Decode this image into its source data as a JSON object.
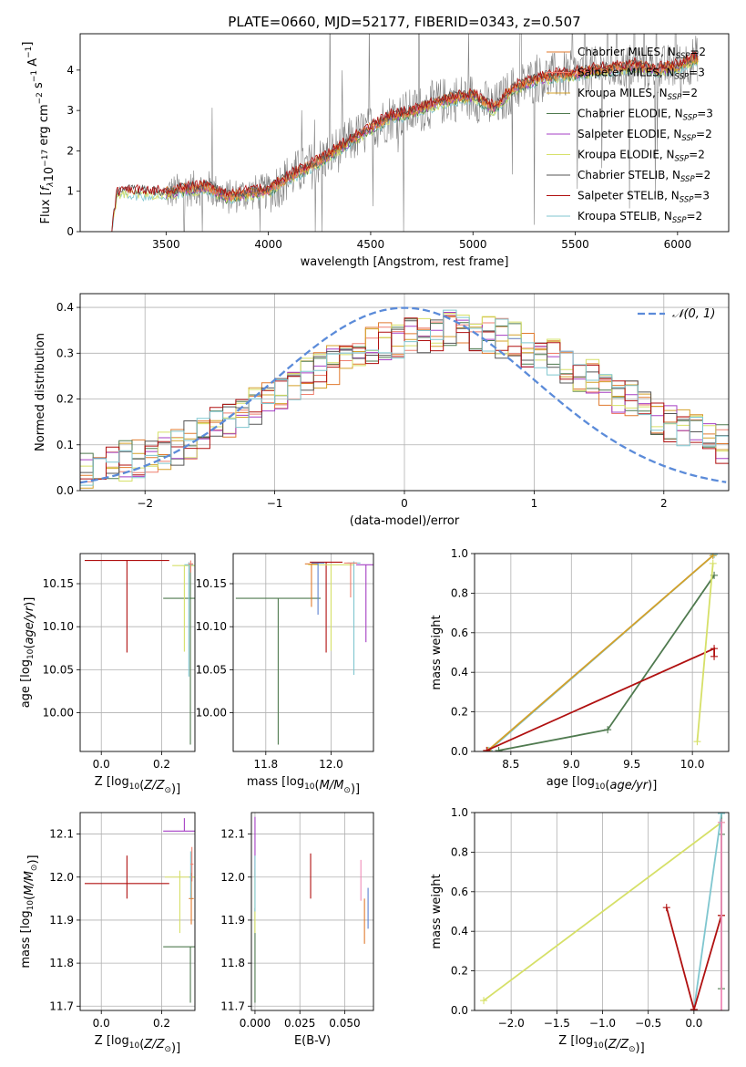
{
  "figure_title": "PLATE=0660, MJD=52177, FIBERID=0343, z=0.507",
  "colors": {
    "chabrier_miles": "#e07a2e",
    "salpeter_miles": "#ef7f6e",
    "kroupa_miles": "#d4a02a",
    "chabrier_elodie": "#4f7a4f",
    "salpeter_elodie": "#a53fc4",
    "kroupa_elodie": "#d6e068",
    "chabrier_stelib": "#555555",
    "salpeter_stelib": "#b01010",
    "kroupa_stelib": "#7fc6cf",
    "data": "#808080",
    "normal": "#5b8bd9",
    "pink": "#f08bb8",
    "blue_small": "#5c7fd0"
  },
  "chart_data": [
    {
      "id": "spectrum",
      "type": "line",
      "title": "PLATE=0660, MJD=52177, FIBERID=0343, z=0.507",
      "xlabel": "wavelength [Angstrom, rest frame]",
      "ylabel_parts": [
        "Flux [",
        "f",
        "λ",
        "10",
        "−17",
        " erg cm",
        "−2",
        " s",
        "−1",
        " A",
        "−1",
        "]"
      ],
      "xlim": [
        3080,
        6250
      ],
      "ylim": [
        0,
        4.9
      ],
      "xticks": [
        3500,
        4000,
        4500,
        5000,
        5500,
        6000
      ],
      "yticks": [
        0,
        1,
        2,
        3,
        4
      ],
      "legend_position": "upper-right",
      "legend": [
        {
          "label": "Chabrier MILES, N",
          "sub": "SSP",
          "suffix": "=2",
          "color_key": "chabrier_miles"
        },
        {
          "label": "Salpeter MILES, N",
          "sub": "SSP",
          "suffix": "=3",
          "color_key": "salpeter_miles"
        },
        {
          "label": "Kroupa MILES, N",
          "sub": "SSP",
          "suffix": "=2",
          "color_key": "kroupa_miles"
        },
        {
          "label": "Chabrier ELODIE, N",
          "sub": "SSP",
          "suffix": "=3",
          "color_key": "chabrier_elodie"
        },
        {
          "label": "Salpeter ELODIE, N",
          "sub": "SSP",
          "suffix": "=2",
          "color_key": "salpeter_elodie"
        },
        {
          "label": "Kroupa ELODIE, N",
          "sub": "SSP",
          "suffix": "=2",
          "color_key": "kroupa_elodie"
        },
        {
          "label": "Chabrier STELIB, N",
          "sub": "SSP",
          "suffix": "=2",
          "color_key": "chabrier_stelib"
        },
        {
          "label": "Salpeter STELIB, N",
          "sub": "SSP",
          "suffix": "=3",
          "color_key": "salpeter_stelib"
        },
        {
          "label": "Kroupa STELIB, N",
          "sub": "SSP",
          "suffix": "=2",
          "color_key": "kroupa_stelib"
        }
      ],
      "model_curve": {
        "x": [
          3230,
          3260,
          3300,
          3400,
          3500,
          3600,
          3700,
          3800,
          3900,
          4000,
          4100,
          4200,
          4300,
          4400,
          4500,
          4600,
          4700,
          4800,
          4900,
          5000,
          5100,
          5200,
          5300,
          5400,
          5500,
          5600,
          5700,
          5800,
          5900,
          6000,
          6100
        ],
        "y": [
          0.0,
          0.9,
          1.0,
          0.95,
          0.95,
          1.05,
          1.1,
          0.85,
          0.95,
          1.0,
          1.35,
          1.6,
          1.9,
          2.25,
          2.55,
          2.85,
          2.95,
          3.15,
          3.3,
          3.35,
          3.05,
          3.55,
          3.75,
          3.85,
          3.9,
          4.0,
          4.05,
          4.1,
          4.0,
          4.1,
          4.3
        ]
      },
      "data_range": [
        3500,
        6100
      ]
    },
    {
      "id": "residuals",
      "type": "step",
      "xlabel": "(data-model)/error",
      "ylabel": "Normed distribution",
      "xlim": [
        -2.5,
        2.5
      ],
      "ylim": [
        0,
        0.43
      ],
      "xticks": [
        -2,
        -1,
        0,
        1,
        2
      ],
      "yticks": [
        0.0,
        0.1,
        0.2,
        0.3,
        0.4
      ],
      "legend": [
        {
          "label": "𝒩(0, 1)",
          "color_key": "normal"
        }
      ],
      "legend_position": "upper-right",
      "normal_curve": {
        "mean": 0,
        "sigma": 1
      }
    },
    {
      "id": "age_vs_Z",
      "type": "errorbar",
      "xlabel": "Z [log₁₀(Z/Z☉)]",
      "ylabel": "age  [log₁₀(age/yr)]",
      "xlim": [
        -0.07,
        0.31
      ],
      "ylim": [
        9.955,
        10.185
      ],
      "xticks": [
        0.0,
        0.2
      ],
      "yticks": [
        10.0,
        10.05,
        10.1,
        10.15
      ],
      "points": [
        {
          "x": 0.085,
          "xerr": 0.14,
          "y": 10.177,
          "yerr_lo": 0.107,
          "yerr_hi": 0.0,
          "color_key": "salpeter_stelib"
        },
        {
          "x": 0.295,
          "xerr": 0.09,
          "y": 10.133,
          "yerr_lo": 0.17,
          "yerr_hi": 0.04,
          "color_key": "chabrier_elodie"
        },
        {
          "x": 0.275,
          "xerr": 0.04,
          "y": 10.171,
          "yerr_lo": 0.1,
          "yerr_hi": 0.0,
          "color_key": "kroupa_elodie"
        },
        {
          "x": 0.29,
          "xerr": 0.015,
          "y": 10.172,
          "yerr_lo": 0.13,
          "yerr_hi": 0.003,
          "color_key": "kroupa_stelib"
        },
        {
          "x": 0.296,
          "xerr": 0.008,
          "y": 10.173,
          "yerr_lo": 0.01,
          "yerr_hi": 0.004,
          "color_key": "salpeter_miles"
        }
      ]
    },
    {
      "id": "age_vs_mass",
      "type": "errorbar",
      "xlabel": "mass [log₁₀(M/M☉)]",
      "ylabel": "",
      "xlim": [
        11.7,
        12.13
      ],
      "ylim": [
        9.955,
        10.185
      ],
      "xticks": [
        11.8,
        12.0
      ],
      "yticks": [
        10.0,
        10.05,
        10.1,
        10.15
      ],
      "points": [
        {
          "x": 11.838,
          "xerr": 0.13,
          "y": 10.133,
          "yerr_lo": 0.17,
          "yerr_hi": 0.0,
          "color_key": "chabrier_elodie"
        },
        {
          "x": 11.985,
          "xerr": 0.05,
          "y": 10.175,
          "yerr_lo": 0.105,
          "yerr_hi": 0.0,
          "color_key": "salpeter_stelib"
        },
        {
          "x": 12.107,
          "xerr": 0.03,
          "y": 10.172,
          "yerr_lo": 0.09,
          "yerr_hi": 0.0,
          "color_key": "salpeter_elodie"
        },
        {
          "x": 12.0,
          "xerr": 0.07,
          "y": 10.172,
          "yerr_lo": 0.1,
          "yerr_hi": 0.0,
          "color_key": "kroupa_elodie"
        },
        {
          "x": 11.94,
          "xerr": 0.02,
          "y": 10.173,
          "yerr_lo": 0.05,
          "yerr_hi": 0.0,
          "color_key": "chabrier_miles"
        },
        {
          "x": 12.07,
          "xerr": 0.02,
          "y": 10.174,
          "yerr_lo": 0.13,
          "yerr_hi": 0.002,
          "color_key": "kroupa_stelib"
        },
        {
          "x": 12.06,
          "xerr": 0.02,
          "y": 10.174,
          "yerr_lo": 0.04,
          "yerr_hi": 0.0,
          "color_key": "salpeter_miles"
        },
        {
          "x": 11.96,
          "xerr": 0.02,
          "y": 10.174,
          "yerr_lo": 0.06,
          "yerr_hi": 0.0,
          "color_key": "blue_small"
        }
      ]
    },
    {
      "id": "weight_vs_age",
      "type": "line",
      "xlabel": "age  [log₁₀(age/yr)]",
      "ylabel": "mass weight",
      "xlim": [
        8.2,
        10.3
      ],
      "ylim": [
        0,
        1
      ],
      "xticks": [
        8.5,
        9.0,
        9.5,
        10.0
      ],
      "yticks": [
        0.0,
        0.2,
        0.4,
        0.6,
        0.8,
        1.0
      ],
      "series": [
        {
          "color_key": "kroupa_stelib",
          "x": [
            8.32,
            10.18
          ],
          "y": [
            0.005,
            0.995
          ]
        },
        {
          "color_key": "kroupa_miles",
          "x": [
            8.31,
            10.17
          ],
          "y": [
            0.005,
            0.99
          ]
        },
        {
          "color_key": "chabrier_elodie",
          "x": [
            8.4,
            9.3,
            10.18
          ],
          "y": [
            0.005,
            0.11,
            0.89
          ]
        },
        {
          "color_key": "salpeter_stelib",
          "x": [
            8.3,
            10.18,
            10.18
          ],
          "y": [
            0.005,
            0.52,
            0.48
          ]
        },
        {
          "color_key": "kroupa_elodie",
          "x": [
            10.04,
            10.17
          ],
          "y": [
            0.05,
            0.95
          ]
        }
      ]
    },
    {
      "id": "mass_vs_Z",
      "type": "errorbar",
      "xlabel": "Z [log₁₀(Z/Z☉)]",
      "ylabel": "mass [log₁₀(M/M☉)]",
      "xlim": [
        -0.07,
        0.31
      ],
      "ylim": [
        11.69,
        12.15
      ],
      "xticks": [
        0.0,
        0.2
      ],
      "yticks": [
        11.7,
        11.8,
        11.9,
        12.0,
        12.1
      ],
      "points": [
        {
          "x": 0.085,
          "xerr": 0.14,
          "y": 11.985,
          "yerr_lo": 0.035,
          "yerr_hi": 0.065,
          "color_key": "salpeter_stelib"
        },
        {
          "x": 0.295,
          "xerr": 0.09,
          "y": 11.838,
          "yerr_lo": 0.13,
          "yerr_hi": 0.0,
          "color_key": "chabrier_elodie"
        },
        {
          "x": 0.275,
          "xerr": 0.07,
          "y": 12.107,
          "yerr_lo": 0.0,
          "yerr_hi": 0.03,
          "color_key": "salpeter_elodie"
        },
        {
          "x": 0.26,
          "xerr": 0.05,
          "y": 12.0,
          "yerr_lo": 0.13,
          "yerr_hi": 0.015,
          "color_key": "kroupa_elodie"
        },
        {
          "x": 0.298,
          "xerr": 0.008,
          "y": 11.95,
          "yerr_lo": 0.06,
          "yerr_hi": 0.06,
          "color_key": "chabrier_miles"
        },
        {
          "x": 0.296,
          "xerr": 0.005,
          "y": 12.0,
          "yerr_lo": 0.05,
          "yerr_hi": 0.06,
          "color_key": "kroupa_stelib"
        },
        {
          "x": 0.3,
          "xerr": 0.005,
          "y": 12.03,
          "yerr_lo": 0.04,
          "yerr_hi": 0.04,
          "color_key": "salpeter_miles"
        }
      ]
    },
    {
      "id": "mass_vs_ebv",
      "type": "errorbar",
      "xlabel": "E(B-V)",
      "ylabel": "",
      "xlim": [
        -0.002,
        0.066
      ],
      "ylim": [
        11.69,
        12.15
      ],
      "xticks": [
        0.0,
        0.025,
        0.05
      ],
      "yticks": [
        11.7,
        11.8,
        11.9,
        12.0,
        12.1
      ],
      "points": [
        {
          "x": 0.0,
          "y": 11.838,
          "yerr_lo": 0.13,
          "yerr_hi": 0.09,
          "color_key": "chabrier_elodie"
        },
        {
          "x": 0.0,
          "y": 12.05,
          "yerr_lo": 0.05,
          "yerr_hi": 0.09,
          "color_key": "salpeter_elodie"
        },
        {
          "x": 0.0,
          "y": 11.9,
          "yerr_lo": 0.03,
          "yerr_hi": 0.12,
          "color_key": "kroupa_elodie"
        },
        {
          "x": 0.0,
          "y": 12.0,
          "yerr_lo": 0.08,
          "yerr_hi": 0.05,
          "color_key": "kroupa_stelib"
        },
        {
          "x": 0.031,
          "y": 12.0,
          "yerr_lo": 0.05,
          "yerr_hi": 0.055,
          "color_key": "salpeter_stelib"
        },
        {
          "x": 0.059,
          "y": 11.99,
          "yerr_lo": 0.045,
          "yerr_hi": 0.05,
          "color_key": "pink"
        },
        {
          "x": 0.061,
          "y": 11.9,
          "yerr_lo": 0.055,
          "yerr_hi": 0.05,
          "color_key": "chabrier_miles"
        },
        {
          "x": 0.063,
          "y": 11.93,
          "yerr_lo": 0.05,
          "yerr_hi": 0.045,
          "color_key": "blue_small"
        }
      ]
    },
    {
      "id": "weight_vs_Z",
      "type": "line",
      "xlabel": "Z [log₁₀(Z/Z☉)]",
      "ylabel": "mass weight",
      "xlim": [
        -2.4,
        0.38
      ],
      "ylim": [
        0,
        1
      ],
      "xticks": [
        -2.0,
        -1.5,
        -1.0,
        -0.5,
        0.0
      ],
      "yticks": [
        0.0,
        0.2,
        0.4,
        0.6,
        0.8,
        1.0
      ],
      "series": [
        {
          "color_key": "kroupa_elodie",
          "x": [
            -2.3,
            0.3
          ],
          "y": [
            0.05,
            0.95
          ]
        },
        {
          "color_key": "chabrier_elodie",
          "x": [
            0.3,
            0.3,
            0.3
          ],
          "y": [
            0.11,
            0.89,
            1.0
          ]
        },
        {
          "color_key": "kroupa_stelib",
          "x": [
            0.0,
            0.3
          ],
          "y": [
            0.005,
            0.995
          ]
        },
        {
          "color_key": "salpeter_stelib",
          "x": [
            -0.3,
            0.0,
            0.3,
            0.3
          ],
          "y": [
            0.52,
            0.005,
            0.48,
            0.48
          ]
        },
        {
          "color_key": "pink",
          "x": [
            0.3,
            0.3
          ],
          "y": [
            0.0,
            0.95
          ]
        }
      ]
    }
  ]
}
